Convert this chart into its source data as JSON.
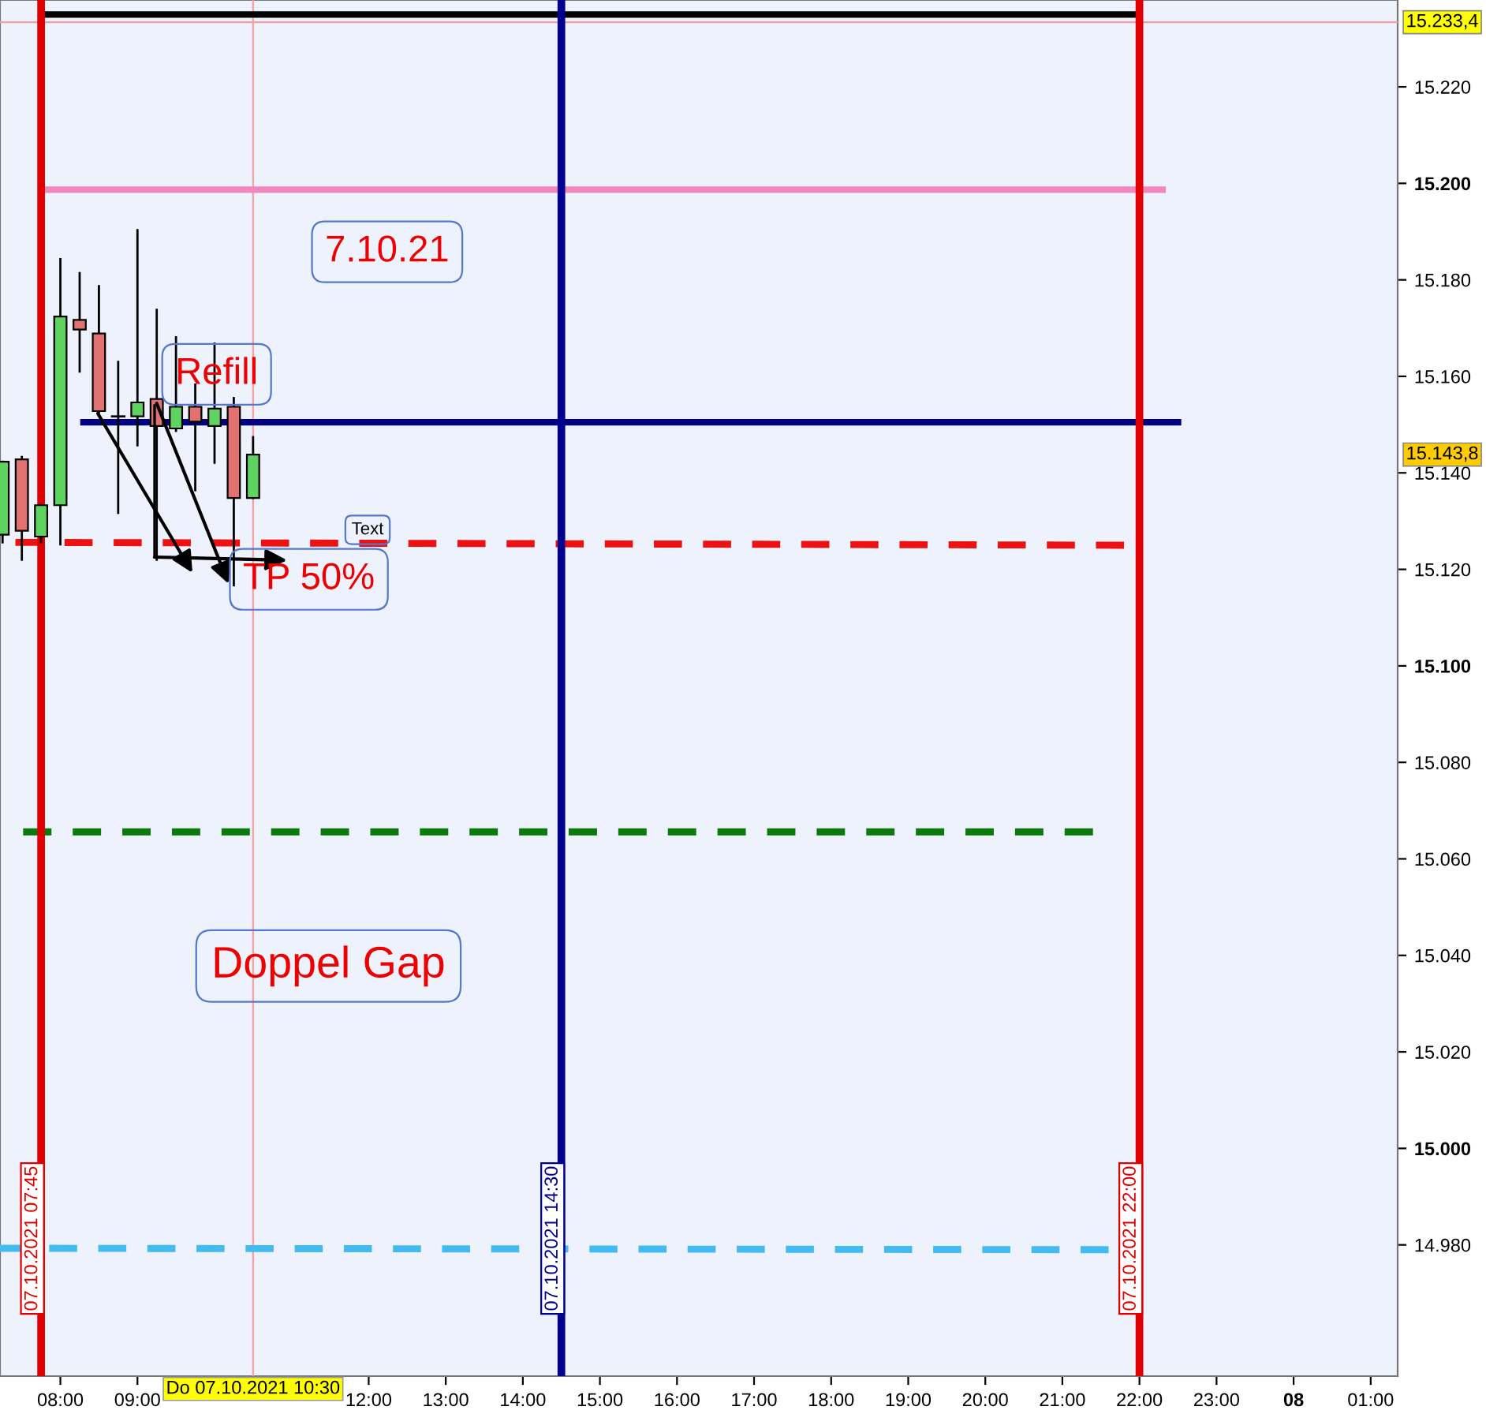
{
  "chart_data": {
    "type": "candlestick",
    "x": [
      "2021-10-07T07:15",
      "2021-10-07T07:30",
      "2021-10-07T07:45",
      "2021-10-07T08:00",
      "2021-10-07T08:15",
      "2021-10-07T08:30",
      "2021-10-07T08:45",
      "2021-10-07T09:00",
      "2021-10-07T09:15",
      "2021-10-07T09:30",
      "2021-10-07T09:45",
      "2021-10-07T10:00",
      "2021-10-07T10:15",
      "2021-10-07T10:30"
    ],
    "ohlc": [
      [
        15127.2,
        15142.3,
        15125.6,
        15142.3
      ],
      [
        15142.8,
        15143.3,
        15122.0,
        15128.0
      ],
      [
        15126.8,
        15133.3,
        15125.6,
        15133.3
      ],
      [
        15133.3,
        15184.3,
        15125.2,
        15172.4
      ],
      [
        15171.7,
        15181.4,
        15161.0,
        15169.7
      ],
      [
        15168.9,
        15178.7,
        15152.5,
        15152.8
      ],
      [
        15151.7,
        15163.0,
        15131.7,
        15151.7
      ],
      [
        15151.7,
        15190.3,
        15145.7,
        15154.6
      ],
      [
        15155.3,
        15173.8,
        15122.0,
        15149.7
      ],
      [
        15149.2,
        15168.1,
        15148.7,
        15153.7
      ],
      [
        15153.7,
        15158.3,
        15136.4,
        15150.6
      ],
      [
        15149.7,
        15166.8,
        15142.1,
        15153.3
      ],
      [
        15153.7,
        15155.5,
        15116.7,
        15134.8
      ],
      [
        15134.8,
        15147.4,
        15134.8,
        15143.8
      ]
    ],
    "colors": [
      "#5fd35f",
      "#e27272",
      "#5fd35f",
      "#5fd35f",
      "#e27272",
      "#e27272",
      "#000000",
      "#5fd35f",
      "#e27272",
      "#5fd35f",
      "#e27272",
      "#5fd35f",
      "#e27272",
      "#5fd35f"
    ],
    "series": [
      {
        "type": "line",
        "color": "#000000",
        "x": [
          "2021-10-07T07:45",
          "2021-10-07T22:00"
        ],
        "values": [
          15235.0,
          15235.0
        ],
        "line_style": "solid"
      },
      {
        "type": "line",
        "color": "#f088c0",
        "x": [
          "2021-10-07T07:48",
          "2021-10-07T22:18"
        ],
        "values": [
          15198.7,
          15198.7
        ],
        "line_style": "solid"
      },
      {
        "type": "line",
        "color": "#000080",
        "x": [
          "2021-10-07T08:18",
          "2021-10-07T22:30"
        ],
        "values": [
          15150.5,
          15150.5
        ],
        "line_style": "solid"
      },
      {
        "type": "line",
        "color": "#ee1111",
        "x": [
          "2021-10-07T07:25",
          "2021-10-07T21:48"
        ],
        "values": [
          15125.6,
          15125.0
        ],
        "line_style": "dashed"
      },
      {
        "type": "line",
        "color": "#0a7a0a",
        "x": [
          "2021-10-07T07:31",
          "2021-10-07T21:24"
        ],
        "values": [
          15065.6,
          15065.6
        ],
        "line_style": "dashed"
      },
      {
        "type": "line",
        "color": "#44bbf0",
        "x": [
          "2021-10-07T07:13",
          "2021-10-07T21:36"
        ],
        "values": [
          14979.3,
          14979.0
        ],
        "line_style": "dashed"
      }
    ],
    "ref_lines": [
      {
        "axis": "x",
        "value": "2021-10-07T07:45",
        "label": "07.10.2021 07:45",
        "color": "#e00000"
      },
      {
        "axis": "x",
        "value": "2021-10-07T14:30",
        "label": "07.10.2021 14:30",
        "color": "#000090"
      },
      {
        "axis": "x",
        "value": "2021-10-07T22:00",
        "label": "07.10.2021 22:00",
        "color": "#e00000"
      },
      {
        "axis": "x",
        "value": "2021-10-07T10:30",
        "label": "Do 07.10.2021 10:30",
        "color": "#f4a0a0"
      },
      {
        "axis": "y",
        "value": 15233.4,
        "label": "15.233,4",
        "color": "#f4a0a0"
      }
    ],
    "annotations": [
      "7.10.21",
      {
        "text": "Refill",
        "x": "2021-10-07T09:15",
        "y": 15154.4
      },
      "Text",
      {
        "text": "TP 50%",
        "x": "2021-10-07T10:11",
        "y": 15117.0
      },
      "Doppel Gap",
      "15.143,8"
    ],
    "xlim": [
      "2021-10-07T07:13",
      "2021-10-08T01:21"
    ],
    "ylim": [
      14952.8,
      15238.0
    ],
    "xticks": [
      {
        "value": "2021-10-07T08:00",
        "label": "08:00"
      },
      {
        "value": "2021-10-07T09:00",
        "label": "09:00"
      },
      {
        "value": "2021-10-07T12:00",
        "label": "12:00"
      },
      {
        "value": "2021-10-07T13:00",
        "label": "13:00"
      },
      {
        "value": "2021-10-07T14:00",
        "label": "14:00"
      },
      {
        "value": "2021-10-07T15:00",
        "label": "15:00"
      },
      {
        "value": "2021-10-07T16:00",
        "label": "16:00"
      },
      {
        "value": "2021-10-07T17:00",
        "label": "17:00"
      },
      {
        "value": "2021-10-07T18:00",
        "label": "18:00"
      },
      {
        "value": "2021-10-07T19:00",
        "label": "19:00"
      },
      {
        "value": "2021-10-07T20:00",
        "label": "20:00"
      },
      {
        "value": "2021-10-07T21:00",
        "label": "21:00"
      },
      {
        "value": "2021-10-07T22:00",
        "label": "22:00"
      },
      {
        "value": "2021-10-07T23:00",
        "label": "23:00"
      },
      {
        "value": "2021-10-08T00:00",
        "label": "08"
      },
      {
        "value": "2021-10-08T01:00",
        "label": "01:00"
      }
    ],
    "yticks": [
      {
        "value": 14980,
        "label": "14.980"
      },
      {
        "value": 15000,
        "label": "15.000"
      },
      {
        "value": 15020,
        "label": "15.020"
      },
      {
        "value": 15040,
        "label": "15.040"
      },
      {
        "value": 15060,
        "label": "15.060"
      },
      {
        "value": 15080,
        "label": "15.080"
      },
      {
        "value": 15100,
        "label": "15.100"
      },
      {
        "value": 15120,
        "label": "15.120"
      },
      {
        "value": 15140,
        "label": "15.140"
      },
      {
        "value": 15160,
        "label": "15.160"
      },
      {
        "value": 15180,
        "label": "15.180"
      },
      {
        "value": 15200,
        "label": "15.200"
      },
      {
        "value": 15220,
        "label": "15.220"
      }
    ],
    "grid": false,
    "legend": false
  }
}
